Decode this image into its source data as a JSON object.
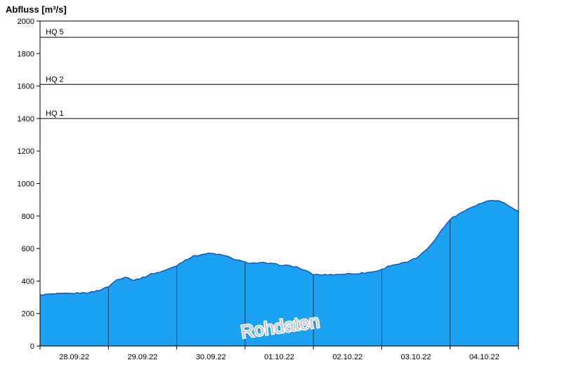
{
  "title": "Abfluss [m³/s]",
  "watermark": "Rohdaten",
  "colors": {
    "area_fill": "#1BA2F2",
    "curve_line": "#0a50c0",
    "day_line": "#123a5e",
    "hq_line": "#000000",
    "axis": "#000000",
    "watermark_fill": "#c9c9c9",
    "watermark_outline": "#ffffff"
  },
  "chart_data": {
    "type": "area",
    "title": "Abfluss [m³/s]",
    "ylabel": "Abfluss [m³/s]",
    "ylim": [
      0,
      2000
    ],
    "ytick_step": 200,
    "grid": false,
    "legend": false,
    "watermark": "Rohdaten",
    "categories": [
      "28.09.22",
      "29.09.22",
      "30.09.22",
      "01.10.22",
      "02.10.22",
      "03.10.22",
      "04.10.22"
    ],
    "day_label_centers_hours": [
      12,
      36,
      60,
      84,
      108,
      132,
      156
    ],
    "day_boundaries_hours": [
      24,
      48,
      72,
      96,
      120,
      144
    ],
    "x_range_hours": [
      0,
      168
    ],
    "series": [
      {
        "name": "Abfluss Rohdaten",
        "x_hours": [
          0,
          3,
          6,
          9,
          12,
          15,
          18,
          21,
          24,
          27,
          30,
          33,
          36,
          39,
          42,
          45,
          48,
          51,
          54,
          57,
          60,
          63,
          66,
          69,
          72,
          75,
          78,
          81,
          84,
          87,
          90,
          93,
          96,
          99,
          102,
          105,
          108,
          111,
          114,
          117,
          120,
          123,
          126,
          129,
          132,
          135,
          138,
          141,
          144,
          147,
          150,
          153,
          156,
          159,
          162,
          165,
          168
        ],
        "values": [
          315,
          318,
          320,
          322,
          324,
          327,
          331,
          345,
          365,
          408,
          425,
          405,
          420,
          443,
          455,
          472,
          495,
          530,
          553,
          565,
          570,
          563,
          549,
          530,
          515,
          510,
          512,
          507,
          500,
          494,
          487,
          465,
          440,
          437,
          439,
          441,
          444,
          446,
          450,
          457,
          470,
          497,
          505,
          516,
          540,
          580,
          640,
          712,
          780,
          812,
          842,
          866,
          886,
          900,
          889,
          861,
          830
        ]
      }
    ],
    "reference_lines": [
      {
        "label": "HQ 5",
        "value": 1900
      },
      {
        "label": "HQ 2",
        "value": 1610
      },
      {
        "label": "HQ 1",
        "value": 1400
      }
    ]
  }
}
